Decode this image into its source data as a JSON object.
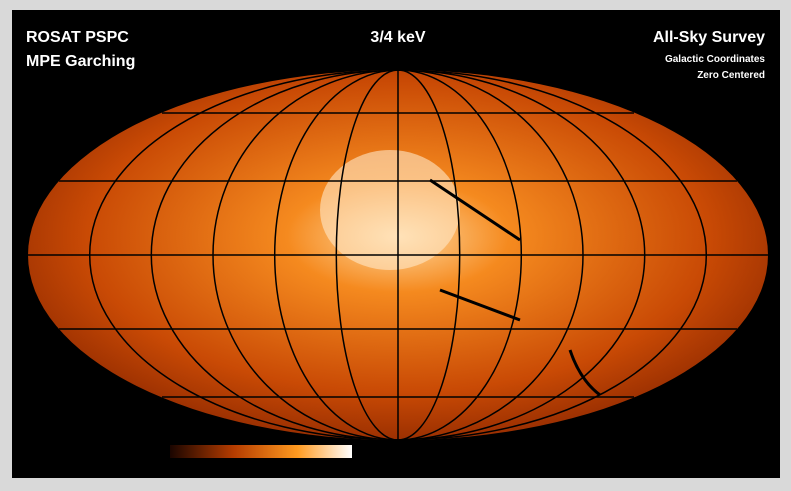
{
  "header": {
    "instrument": "ROSAT PSPC",
    "institute": "MPE Garching",
    "band": "3/4 keV",
    "survey": "All-Sky Survey",
    "coordinates": "Galactic Coordinates",
    "centering": "Zero Centered"
  }
}
